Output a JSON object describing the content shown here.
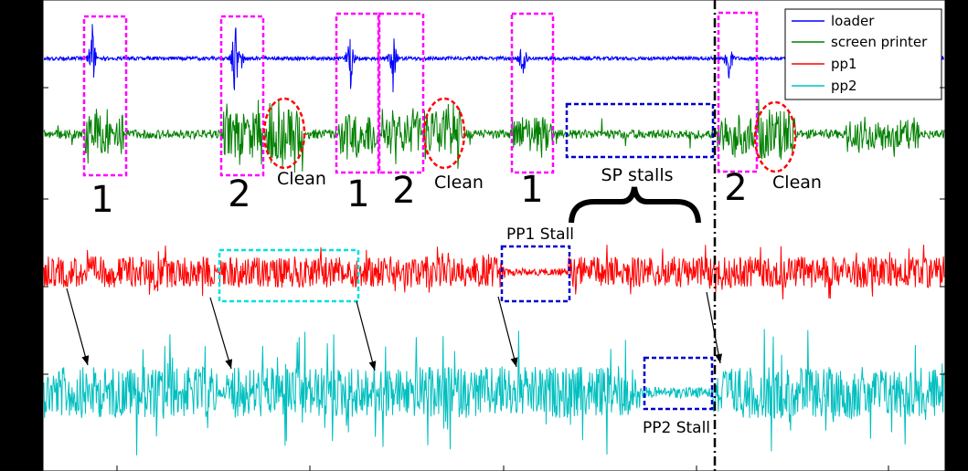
{
  "chart_data": {
    "type": "line",
    "title": "",
    "xlabel": "",
    "ylabel": "",
    "grid": false,
    "legend_placement": "top-right",
    "series": [
      {
        "name": "loader",
        "color": "#0000ff",
        "baseline": 64
      },
      {
        "name": "screen printer",
        "color": "#008000",
        "baseline": 147
      },
      {
        "name": "pp1",
        "color": "#ff0000",
        "baseline": 298
      },
      {
        "name": "pp2",
        "color": "#00bfbf",
        "baseline": 430
      }
    ],
    "loader_spikes": [
      {
        "x": 101,
        "amp": 45
      },
      {
        "x": 257,
        "amp": 60
      },
      {
        "x": 262,
        "amp": 40
      },
      {
        "x": 383,
        "amp": 45
      },
      {
        "x": 430,
        "amp": 38
      },
      {
        "x": 572,
        "amp": 38
      },
      {
        "x": 797,
        "amp": 40
      },
      {
        "x": 955,
        "amp": 55
      }
    ],
    "sp_bursts": [
      {
        "x0": 92,
        "x1": 135,
        "amp": 22
      },
      {
        "x0": 244,
        "x1": 286,
        "amp": 24
      },
      {
        "x0": 290,
        "x1": 332,
        "amp": 28
      },
      {
        "x0": 370,
        "x1": 412,
        "amp": 22
      },
      {
        "x0": 418,
        "x1": 460,
        "amp": 22
      },
      {
        "x0": 464,
        "x1": 505,
        "amp": 28
      },
      {
        "x0": 560,
        "x1": 605,
        "amp": 20
      },
      {
        "x0": 785,
        "x1": 825,
        "amp": 22
      },
      {
        "x0": 828,
        "x1": 870,
        "amp": 28
      },
      {
        "x0": 925,
        "x1": 1005,
        "amp": 16
      }
    ],
    "pp1_stalls": [
      {
        "x0": 553,
        "x1": 622
      }
    ],
    "pp2_gaps": [
      {
        "x0": 238,
        "x1": 248
      },
      {
        "x0": 700,
        "x1": 780
      }
    ],
    "boxes": [
      {
        "color": "#ff00ff",
        "style": "dash"
      },
      {
        "color": "#ff00ff",
        "style": "dash"
      },
      {
        "color": "#ff00ff",
        "style": "dash"
      },
      {
        "color": "#ff00ff",
        "style": "dash"
      },
      {
        "color": "#ff00ff",
        "style": "dash"
      },
      {
        "color": "#ff00ff",
        "style": "dash"
      },
      {
        "color": "#0000cc",
        "style": "dash"
      },
      {
        "color": "#00e0e0",
        "style": "dash"
      },
      {
        "color": "#0000cc",
        "style": "dash"
      },
      {
        "color": "#0000cc",
        "style": "dash"
      }
    ],
    "ellipses": [
      {
        "color": "#ff0000"
      },
      {
        "color": "#ff0000"
      },
      {
        "color": "#ff0000"
      }
    ],
    "annotations": [
      {
        "text": "1",
        "size": 40
      },
      {
        "text": "2",
        "size": 40
      },
      {
        "text": "Clean",
        "size": 19
      },
      {
        "text": "1",
        "size": 40
      },
      {
        "text": "2",
        "size": 40
      },
      {
        "text": "Clean",
        "size": 19
      },
      {
        "text": "1",
        "size": 40
      },
      {
        "text": "SP stalls",
        "size": 19
      },
      {
        "text": "2",
        "size": 40
      },
      {
        "text": "Clean",
        "size": 19
      },
      {
        "text": "PP1 Stall",
        "size": 17
      },
      {
        "text": "PP2 Stall",
        "size": 17
      }
    ],
    "arrows": 6,
    "vertical_marker": {
      "style": "dash-dot",
      "color": "#000000"
    }
  }
}
